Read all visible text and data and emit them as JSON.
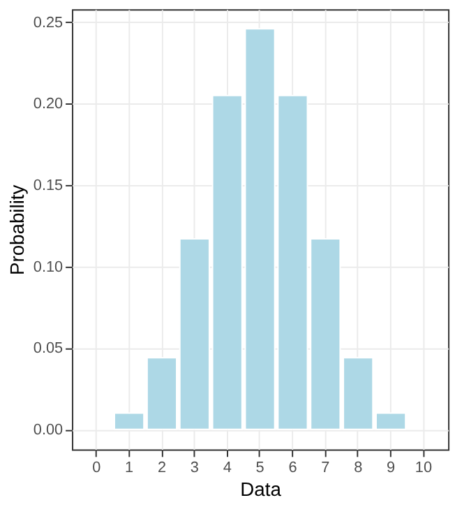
{
  "chart_data": {
    "type": "bar",
    "xlabel": "Data",
    "ylabel": "Probability",
    "categories": [
      "0",
      "1",
      "2",
      "3",
      "4",
      "5",
      "6",
      "7",
      "8",
      "9",
      "10"
    ],
    "values": [
      null,
      0.01,
      0.044,
      0.117,
      0.205,
      0.246,
      0.205,
      0.117,
      0.044,
      0.01,
      null
    ],
    "color": "#add8e6",
    "ylim": [
      -0.0123,
      0.258
    ],
    "yticks": [
      {
        "value": 0,
        "label": "0.00"
      },
      {
        "value": 0.05,
        "label": "0.05"
      },
      {
        "value": 0.1,
        "label": "0.10"
      },
      {
        "value": 0.15,
        "label": "0.15"
      },
      {
        "value": 0.2,
        "label": "0.20"
      },
      {
        "value": 0.25,
        "label": "0.25"
      }
    ],
    "grid": true
  }
}
